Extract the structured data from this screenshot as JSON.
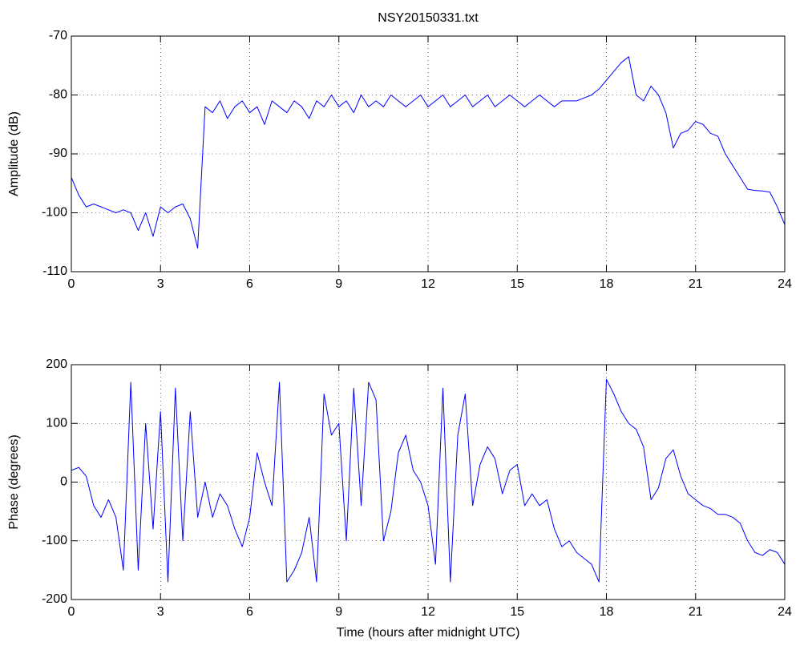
{
  "chart_data": [
    {
      "type": "line",
      "title": "NSY20150331.txt",
      "ylabel": "Amplitude (dB)",
      "color": "#0000ff",
      "grid": true,
      "x": [
        0,
        0.25,
        0.5,
        0.75,
        1,
        1.25,
        1.5,
        1.75,
        2,
        2.25,
        2.5,
        2.75,
        3,
        3.25,
        3.5,
        3.75,
        4,
        4.25,
        4.5,
        4.75,
        5,
        5.25,
        5.5,
        5.75,
        6,
        6.25,
        6.5,
        6.75,
        7,
        7.25,
        7.5,
        7.75,
        8,
        8.25,
        8.5,
        8.75,
        9,
        9.25,
        9.5,
        9.75,
        10,
        10.25,
        10.5,
        10.75,
        11,
        11.25,
        11.5,
        11.75,
        12,
        12.25,
        12.5,
        12.75,
        13,
        13.25,
        13.5,
        13.75,
        14,
        14.25,
        14.5,
        14.75,
        15,
        15.25,
        15.5,
        15.75,
        16,
        16.25,
        16.5,
        16.75,
        17,
        17.25,
        17.5,
        17.75,
        18,
        18.25,
        18.5,
        18.75,
        19,
        19.25,
        19.5,
        19.75,
        20,
        20.25,
        20.5,
        20.75,
        21,
        21.25,
        21.5,
        21.75,
        22,
        22.25,
        22.5,
        22.75,
        23,
        23.25,
        23.5,
        23.75,
        24
      ],
      "values": [
        -94,
        -97,
        -99,
        -98.5,
        -99,
        -99.5,
        -100,
        -99.5,
        -100,
        -103,
        -100,
        -104,
        -99,
        -100,
        -99,
        -98.5,
        -101,
        -106,
        -82,
        -83,
        -81,
        -84,
        -82,
        -81,
        -83,
        -82,
        -85,
        -81,
        -82,
        -83,
        -81,
        -82,
        -84,
        -81,
        -82,
        -80,
        -82,
        -81,
        -83,
        -80,
        -82,
        -81,
        -82,
        -80,
        -81,
        -82,
        -81,
        -80,
        -82,
        -81,
        -80,
        -82,
        -81,
        -80,
        -82,
        -81,
        -80,
        -82,
        -81,
        -80,
        -81,
        -82,
        -81,
        -80,
        -81,
        -82,
        -81,
        -81,
        -81,
        -80.5,
        -80,
        -79,
        -77.5,
        -76,
        -74.5,
        -73.5,
        -80,
        -81,
        -78.5,
        -80,
        -83,
        -89,
        -86.5,
        -86,
        -84.5,
        -85,
        -86.5,
        -87,
        -90,
        -92,
        -94,
        -96,
        -96.2,
        -96.3,
        -96.5,
        -99,
        -102
      ],
      "xlim": [
        0,
        24
      ],
      "xticks": [
        0,
        3,
        6,
        9,
        12,
        15,
        18,
        21,
        24
      ],
      "ylim": [
        -110,
        -70
      ],
      "yticks": [
        -110,
        -100,
        -90,
        -80,
        -70
      ]
    },
    {
      "type": "line",
      "xlabel": "Time (hours after midnight UTC)",
      "ylabel": "Phase (degrees)",
      "color": "#0000ff",
      "grid": true,
      "x": [
        0,
        0.25,
        0.5,
        0.75,
        1,
        1.25,
        1.5,
        1.75,
        2,
        2.25,
        2.5,
        2.75,
        3,
        3.25,
        3.5,
        3.75,
        4,
        4.25,
        4.5,
        4.75,
        5,
        5.25,
        5.5,
        5.75,
        6,
        6.25,
        6.5,
        6.75,
        7,
        7.25,
        7.5,
        7.75,
        8,
        8.25,
        8.5,
        8.75,
        9,
        9.25,
        9.5,
        9.75,
        10,
        10.25,
        10.5,
        10.75,
        11,
        11.25,
        11.5,
        11.75,
        12,
        12.25,
        12.5,
        12.75,
        13,
        13.25,
        13.5,
        13.75,
        14,
        14.25,
        14.5,
        14.75,
        15,
        15.25,
        15.5,
        15.75,
        16,
        16.25,
        16.5,
        16.75,
        17,
        17.25,
        17.5,
        17.75,
        18,
        18.25,
        18.5,
        18.75,
        19,
        19.25,
        19.5,
        19.75,
        20,
        20.25,
        20.5,
        20.75,
        21,
        21.25,
        21.5,
        21.75,
        22,
        22.25,
        22.5,
        22.75,
        23,
        23.25,
        23.5,
        23.75,
        24
      ],
      "values": [
        20,
        25,
        10,
        -40,
        -60,
        -30,
        -60,
        -150,
        170,
        -150,
        100,
        -80,
        120,
        -170,
        160,
        -100,
        120,
        -60,
        0,
        -60,
        -20,
        -40,
        -80,
        -110,
        -60,
        50,
        0,
        -40,
        170,
        -170,
        -150,
        -120,
        -60,
        -170,
        150,
        80,
        100,
        -100,
        160,
        -40,
        170,
        140,
        -100,
        -50,
        50,
        80,
        20,
        0,
        -40,
        -140,
        160,
        -170,
        80,
        150,
        -40,
        30,
        60,
        40,
        -20,
        20,
        30,
        -40,
        -20,
        -40,
        -30,
        -80,
        -110,
        -100,
        -120,
        -130,
        -140,
        -170,
        175,
        150,
        120,
        100,
        90,
        60,
        -30,
        -10,
        40,
        55,
        10,
        -20,
        -30,
        -40,
        -45,
        -55,
        -55,
        -60,
        -70,
        -100,
        -120,
        -125,
        -115,
        -120,
        -140
      ],
      "xlim": [
        0,
        24
      ],
      "xticks": [
        0,
        3,
        6,
        9,
        12,
        15,
        18,
        21,
        24
      ],
      "ylim": [
        -200,
        200
      ],
      "yticks": [
        -200,
        -100,
        0,
        100,
        200
      ]
    }
  ]
}
